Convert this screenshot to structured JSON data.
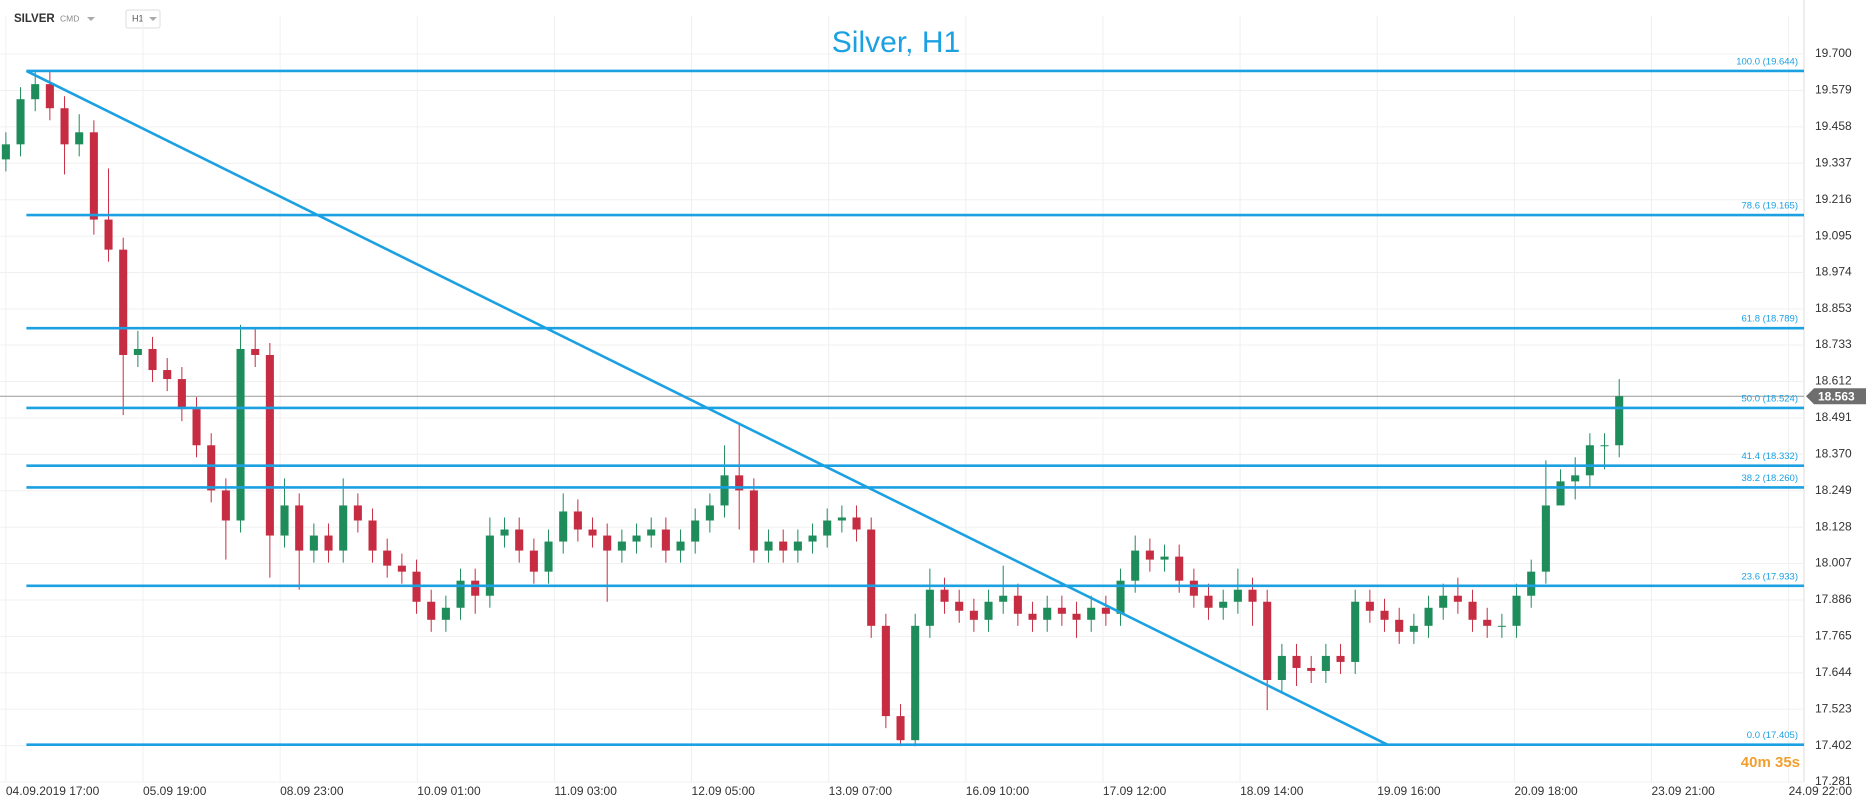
{
  "header": {
    "symbol": "SILVER",
    "market": "CMD",
    "timeframe": "H1"
  },
  "chart_data": {
    "type": "candlestick",
    "title": "Silver, H1",
    "xlim": [
      -0.4,
      122.6
    ],
    "xticks": [
      {
        "value": 0,
        "label": "04.09.2019  17:00"
      },
      {
        "value": 9.35,
        "label": "05.09  19:00"
      },
      {
        "value": 18.7,
        "label": "08.09  23:00"
      },
      {
        "value": 28.05,
        "label": "10.09  01:00"
      },
      {
        "value": 37.4,
        "label": "11.09  03:00"
      },
      {
        "value": 46.75,
        "label": "12.09  05:00"
      },
      {
        "value": 56.1,
        "label": "13.09  07:00"
      },
      {
        "value": 65.45,
        "label": "16.09  10:00"
      },
      {
        "value": 74.8,
        "label": "17.09  12:00"
      },
      {
        "value": 84.15,
        "label": "18.09  14:00"
      },
      {
        "value": 93.5,
        "label": "19.09  16:00"
      },
      {
        "value": 102.85,
        "label": "20.09  18:00"
      },
      {
        "value": 112.2,
        "label": "23.09  21:00"
      },
      {
        "value": 121.55,
        "label": "24.09  22:00"
      }
    ],
    "ylim": [
      17.281,
      19.76
    ],
    "yticks": [
      {
        "value": 19.7,
        "label": "19.700"
      },
      19.579,
      19.458,
      19.337,
      19.216,
      19.095,
      18.974,
      18.853,
      18.733,
      18.612,
      18.491,
      {
        "value": 18.37,
        "label": "18.370"
      },
      18.249,
      18.128,
      18.007,
      17.886,
      17.765,
      17.644,
      17.523,
      17.402,
      17.281
    ],
    "open": [
      19.35,
      19.4,
      19.55,
      19.6,
      19.52,
      19.4,
      19.44,
      19.15,
      19.05,
      18.7,
      18.72,
      18.65,
      18.62,
      18.52,
      18.4,
      18.25,
      18.15,
      18.72,
      18.7,
      18.1,
      18.2,
      18.05,
      18.1,
      18.05,
      18.2,
      18.15,
      18.05,
      18.0,
      17.98,
      17.88,
      17.82,
      17.86,
      17.95,
      17.9,
      18.1,
      18.12,
      18.05,
      17.98,
      18.08,
      18.18,
      18.12,
      18.1,
      18.05,
      18.08,
      18.1,
      18.12,
      18.05,
      18.08,
      18.15,
      18.2,
      18.3,
      18.25,
      18.05,
      18.08,
      18.05,
      18.08,
      18.1,
      18.15,
      18.16,
      18.12,
      17.8,
      17.5,
      17.42,
      17.8,
      17.92,
      17.88,
      17.85,
      17.82,
      17.88,
      17.9,
      17.84,
      17.82,
      17.86,
      17.84,
      17.82,
      17.86,
      17.84,
      17.95,
      18.05,
      18.02,
      18.03,
      17.95,
      17.9,
      17.86,
      17.88,
      17.92,
      17.88,
      17.62,
      17.7,
      17.66,
      17.65,
      17.7,
      17.68,
      17.88,
      17.85,
      17.82,
      17.78,
      17.8,
      17.86,
      17.9,
      17.88,
      17.82,
      17.8,
      17.8,
      17.9,
      17.98,
      18.2,
      18.28,
      18.3,
      18.4,
      18.4
    ],
    "high": [
      19.44,
      19.59,
      19.644,
      19.64,
      19.56,
      19.5,
      19.48,
      19.32,
      19.09,
      18.78,
      18.76,
      18.69,
      18.66,
      18.56,
      18.44,
      18.29,
      18.8,
      18.79,
      18.74,
      18.29,
      18.24,
      18.14,
      18.14,
      18.29,
      18.24,
      18.19,
      18.09,
      18.04,
      18.02,
      17.92,
      17.9,
      17.99,
      17.99,
      18.16,
      18.16,
      18.16,
      18.09,
      18.12,
      18.24,
      18.22,
      18.16,
      18.14,
      18.12,
      18.14,
      18.16,
      18.16,
      18.12,
      18.19,
      18.24,
      18.4,
      18.47,
      18.29,
      18.12,
      18.12,
      18.12,
      18.14,
      18.19,
      18.2,
      18.2,
      18.16,
      17.84,
      17.54,
      17.84,
      17.99,
      17.96,
      17.92,
      17.89,
      17.92,
      18.0,
      17.94,
      17.88,
      17.9,
      17.9,
      17.88,
      17.9,
      17.9,
      17.99,
      18.1,
      18.09,
      18.07,
      18.07,
      17.99,
      17.94,
      17.92,
      17.99,
      17.96,
      17.92,
      17.74,
      17.74,
      17.7,
      17.74,
      17.74,
      17.92,
      17.92,
      17.89,
      17.86,
      17.84,
      17.9,
      17.94,
      17.96,
      17.92,
      17.86,
      17.84,
      17.94,
      18.02,
      18.35,
      18.32,
      18.36,
      18.44,
      18.44,
      18.62
    ],
    "low": [
      19.31,
      19.36,
      19.51,
      19.48,
      19.3,
      19.36,
      19.1,
      19.01,
      18.5,
      18.66,
      18.61,
      18.58,
      18.48,
      18.36,
      18.21,
      18.02,
      18.11,
      18.66,
      17.96,
      18.06,
      17.92,
      18.01,
      18.01,
      18.01,
      18.11,
      18.01,
      17.96,
      17.94,
      17.84,
      17.78,
      17.78,
      17.82,
      17.84,
      17.86,
      18.06,
      18.01,
      17.94,
      17.94,
      18.04,
      18.08,
      18.06,
      17.88,
      18.01,
      18.04,
      18.06,
      18.01,
      18.01,
      18.04,
      18.11,
      18.16,
      18.12,
      18.01,
      18.01,
      18.01,
      18.01,
      18.04,
      18.06,
      18.11,
      18.08,
      17.76,
      17.46,
      17.4,
      17.4,
      17.76,
      17.84,
      17.81,
      17.78,
      17.78,
      17.84,
      17.8,
      17.78,
      17.78,
      17.8,
      17.76,
      17.78,
      17.8,
      17.8,
      17.91,
      17.98,
      17.98,
      17.91,
      17.86,
      17.82,
      17.82,
      17.84,
      17.8,
      17.52,
      17.58,
      17.6,
      17.61,
      17.61,
      17.64,
      17.64,
      17.81,
      17.78,
      17.74,
      17.74,
      17.76,
      17.82,
      17.84,
      17.78,
      17.76,
      17.76,
      17.76,
      17.86,
      17.94,
      18.22,
      18.22,
      18.26,
      18.32,
      18.36
    ],
    "close": [
      19.4,
      19.55,
      19.6,
      19.52,
      19.4,
      19.44,
      19.15,
      19.05,
      18.7,
      18.72,
      18.65,
      18.62,
      18.52,
      18.4,
      18.25,
      18.15,
      18.72,
      18.7,
      18.1,
      18.2,
      18.05,
      18.1,
      18.05,
      18.2,
      18.15,
      18.05,
      18.0,
      17.98,
      17.88,
      17.82,
      17.86,
      17.95,
      17.9,
      18.1,
      18.12,
      18.05,
      17.98,
      18.08,
      18.18,
      18.12,
      18.1,
      18.05,
      18.08,
      18.1,
      18.12,
      18.05,
      18.08,
      18.15,
      18.2,
      18.3,
      18.25,
      18.05,
      18.08,
      18.05,
      18.08,
      18.1,
      18.15,
      18.16,
      18.12,
      17.8,
      17.5,
      17.42,
      17.8,
      17.92,
      17.88,
      17.85,
      17.82,
      17.88,
      17.9,
      17.84,
      17.82,
      17.86,
      17.84,
      17.82,
      17.86,
      17.84,
      17.95,
      18.05,
      18.02,
      18.03,
      17.95,
      17.9,
      17.86,
      17.88,
      17.92,
      17.88,
      17.62,
      17.7,
      17.66,
      17.65,
      17.7,
      17.68,
      17.88,
      17.85,
      17.82,
      17.78,
      17.8,
      17.86,
      17.9,
      17.88,
      17.82,
      17.8,
      17.8,
      17.9,
      17.98,
      18.2,
      18.28,
      18.3,
      18.4,
      18.4,
      18.563
    ],
    "up_color": "#1f8c5b",
    "down_color": "#c62d42",
    "line_color": "#1ba1e2",
    "grid": true,
    "fib_levels": [
      {
        "label": "100.0 (19.644)",
        "value": 19.644
      },
      {
        "label": "78.6 (19.165)",
        "value": 19.165
      },
      {
        "label": "61.8 (18.789)",
        "value": 18.789
      },
      {
        "label": "50.0 (18.524)",
        "value": 18.524
      },
      {
        "label": "41.4 (18.332)",
        "value": 18.332
      },
      {
        "label": "38.2 (18.260)",
        "value": 18.26
      },
      {
        "label": "23.6 (17.933)",
        "value": 17.933
      },
      {
        "label": "0.0 (17.405)",
        "value": 17.405
      }
    ],
    "fib_start": 1.4,
    "trendline": {
      "x": [
        1.4,
        94.2
      ],
      "y": [
        19.644,
        17.405
      ]
    },
    "last_price": 18.563,
    "timer": "40m 35s"
  }
}
